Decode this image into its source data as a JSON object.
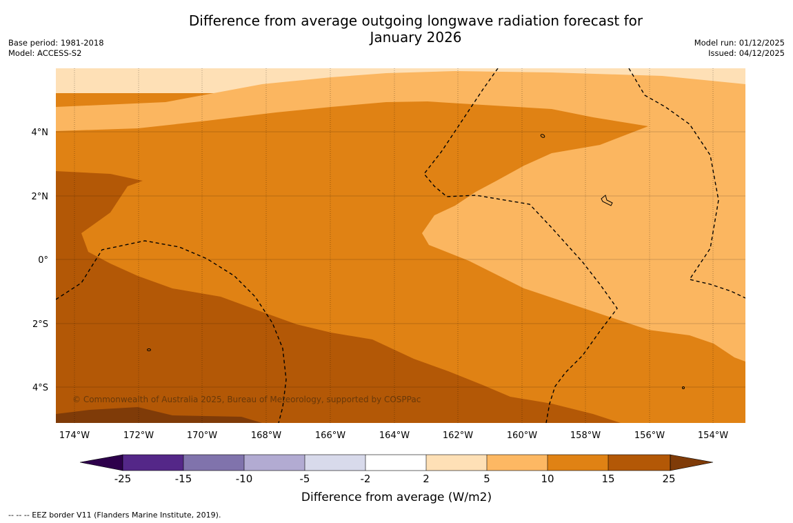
{
  "title_line1": "Difference from average outgoing longwave radiation forecast for",
  "title_line2": "January 2026",
  "meta_left": {
    "base_period": "Base period: 1981-2018",
    "model": "Model: ACCESS-S2"
  },
  "meta_right": {
    "model_run": "Model run: 01/12/2025",
    "issued": "Issued: 04/12/2025"
  },
  "map": {
    "lon_labels": [
      "174°W",
      "172°W",
      "170°W",
      "168°W",
      "166°W",
      "164°W",
      "162°W",
      "160°W",
      "158°W",
      "156°W",
      "154°W"
    ],
    "lat_labels": [
      "4°N",
      "2°N",
      "0°",
      "2°S",
      "4°S"
    ],
    "colors": {
      "b5_10": "#fbb660",
      "b10_15": "#e08214",
      "b15_25": "#b35806",
      "b25plus": "#7f3b08",
      "b2_5": "#fee0b6"
    }
  },
  "copyright": "© Commonwealth of Australia 2025, Bureau of Meteorology, supported by COSPPac",
  "colorbar": {
    "label": "Difference from average (W/m2)",
    "ticks": [
      "-25",
      "-15",
      "-10",
      "-5",
      "-2",
      "2",
      "5",
      "10",
      "15",
      "25"
    ],
    "colors": [
      "#2d004b",
      "#542788",
      "#8073ac",
      "#b2abd2",
      "#d8daeb",
      "#ffffff",
      "#fee0b6",
      "#fdb863",
      "#e08214",
      "#b35806",
      "#7f3b08"
    ]
  },
  "footnote": "--  --  -- EEZ border V11 (Flanders Marine Institute, 2019)."
}
